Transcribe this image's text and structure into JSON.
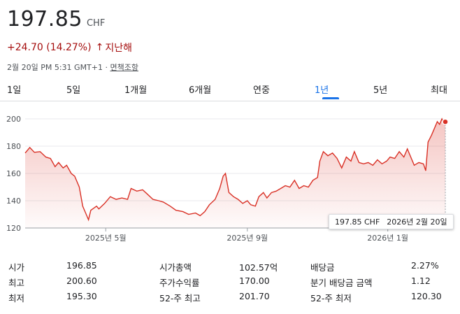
{
  "quote": {
    "price": "197.85",
    "currency": "CHF",
    "change": "+24.70 (14.27%)",
    "change_arrow": "↑",
    "change_period": "지난해",
    "timestamp": "2월 20일 PM 5:31 GMT+1",
    "separator": " · ",
    "disclaimer": "면책조항"
  },
  "tabs": [
    {
      "label": "1일",
      "active": false
    },
    {
      "label": "5일",
      "active": false
    },
    {
      "label": "1개월",
      "active": false
    },
    {
      "label": "6개월",
      "active": false
    },
    {
      "label": "연중",
      "active": false
    },
    {
      "label": "1년",
      "active": true
    },
    {
      "label": "5년",
      "active": false
    },
    {
      "label": "최대",
      "active": false
    }
  ],
  "colors": {
    "line": "#d93025",
    "accent": "#1a73e8",
    "negative_change": "#a50e0e"
  },
  "chart_data": {
    "type": "area",
    "ylim": [
      120,
      200
    ],
    "yticks": [
      200,
      180,
      160,
      140,
      120
    ],
    "x_start": "2025-02-20",
    "x_end": "2026-02-20",
    "xtick_labels": [
      {
        "label": "2025년 5월",
        "date": "2025-05-01"
      },
      {
        "label": "2025년 9월",
        "date": "2025-09-01"
      },
      {
        "label": "2026년 1월",
        "date": "2026-01-01"
      }
    ],
    "grid": "horizontal",
    "series": [
      {
        "points": [
          [
            "2025-02-20",
            175.0
          ],
          [
            "2025-02-24",
            179.0
          ],
          [
            "2025-02-28",
            175.5
          ],
          [
            "2025-03-05",
            176.0
          ],
          [
            "2025-03-10",
            172.0
          ],
          [
            "2025-03-14",
            171.0
          ],
          [
            "2025-03-18",
            165.0
          ],
          [
            "2025-03-21",
            168.0
          ],
          [
            "2025-03-25",
            164.0
          ],
          [
            "2025-03-28",
            166.0
          ],
          [
            "2025-04-01",
            160.0
          ],
          [
            "2025-04-04",
            158.0
          ],
          [
            "2025-04-08",
            150.0
          ],
          [
            "2025-04-11",
            136.0
          ],
          [
            "2025-04-14",
            130.0
          ],
          [
            "2025-04-16",
            126.0
          ],
          [
            "2025-04-18",
            133.0
          ],
          [
            "2025-04-23",
            136.0
          ],
          [
            "2025-04-25",
            134.0
          ],
          [
            "2025-04-30",
            138.0
          ],
          [
            "2025-05-05",
            143.0
          ],
          [
            "2025-05-10",
            141.0
          ],
          [
            "2025-05-15",
            142.0
          ],
          [
            "2025-05-20",
            141.0
          ],
          [
            "2025-05-23",
            149.0
          ],
          [
            "2025-05-28",
            147.0
          ],
          [
            "2025-06-02",
            148.0
          ],
          [
            "2025-06-06",
            145.0
          ],
          [
            "2025-06-11",
            141.0
          ],
          [
            "2025-06-16",
            140.0
          ],
          [
            "2025-06-20",
            139.0
          ],
          [
            "2025-06-26",
            136.0
          ],
          [
            "2025-07-01",
            133.0
          ],
          [
            "2025-07-07",
            132.0
          ],
          [
            "2025-07-12",
            130.0
          ],
          [
            "2025-07-18",
            131.0
          ],
          [
            "2025-07-22",
            129.0
          ],
          [
            "2025-07-26",
            132.0
          ],
          [
            "2025-07-30",
            137.0
          ],
          [
            "2025-08-04",
            141.0
          ],
          [
            "2025-08-08",
            149.0
          ],
          [
            "2025-08-11",
            158.0
          ],
          [
            "2025-08-13",
            160.0
          ],
          [
            "2025-08-16",
            146.0
          ],
          [
            "2025-08-20",
            143.0
          ],
          [
            "2025-08-24",
            141.0
          ],
          [
            "2025-08-28",
            138.0
          ],
          [
            "2025-09-01",
            140.0
          ],
          [
            "2025-09-04",
            137.0
          ],
          [
            "2025-09-08",
            136.0
          ],
          [
            "2025-09-11",
            143.0
          ],
          [
            "2025-09-15",
            146.0
          ],
          [
            "2025-09-18",
            142.0
          ],
          [
            "2025-09-22",
            146.0
          ],
          [
            "2025-09-26",
            147.0
          ],
          [
            "2025-09-30",
            149.0
          ],
          [
            "2025-10-04",
            151.0
          ],
          [
            "2025-10-08",
            150.0
          ],
          [
            "2025-10-12",
            155.0
          ],
          [
            "2025-10-16",
            149.0
          ],
          [
            "2025-10-20",
            151.0
          ],
          [
            "2025-10-24",
            150.0
          ],
          [
            "2025-10-28",
            155.0
          ],
          [
            "2025-11-01",
            157.0
          ],
          [
            "2025-11-03",
            169.0
          ],
          [
            "2025-11-06",
            176.0
          ],
          [
            "2025-11-10",
            173.0
          ],
          [
            "2025-11-14",
            175.0
          ],
          [
            "2025-11-18",
            171.0
          ],
          [
            "2025-11-22",
            164.0
          ],
          [
            "2025-11-26",
            172.0
          ],
          [
            "2025-11-30",
            169.0
          ],
          [
            "2025-12-03",
            176.0
          ],
          [
            "2025-12-07",
            168.0
          ],
          [
            "2025-12-11",
            167.0
          ],
          [
            "2025-12-15",
            168.0
          ],
          [
            "2025-12-19",
            166.0
          ],
          [
            "2025-12-23",
            170.0
          ],
          [
            "2025-12-27",
            167.0
          ],
          [
            "2025-12-31",
            169.0
          ],
          [
            "2026-01-03",
            172.0
          ],
          [
            "2026-01-07",
            171.0
          ],
          [
            "2026-01-11",
            176.0
          ],
          [
            "2026-01-15",
            172.0
          ],
          [
            "2026-01-18",
            178.0
          ],
          [
            "2026-01-21",
            172.0
          ],
          [
            "2026-01-24",
            166.0
          ],
          [
            "2026-01-28",
            168.0
          ],
          [
            "2026-02-01",
            167.0
          ],
          [
            "2026-02-03",
            162.0
          ],
          [
            "2026-02-05",
            183.0
          ],
          [
            "2026-02-08",
            188.0
          ],
          [
            "2026-02-11",
            194.0
          ],
          [
            "2026-02-13",
            198.0
          ],
          [
            "2026-02-15",
            196.0
          ],
          [
            "2026-02-17",
            200.0
          ],
          [
            "2026-02-19",
            196.0
          ],
          [
            "2026-02-20",
            197.85
          ]
        ]
      }
    ]
  },
  "tooltip": {
    "price": "197.85 CHF",
    "date": "2026년 2월 20일"
  },
  "stats": [
    [
      {
        "label": "시가",
        "value": "196.85"
      },
      {
        "label": "시가총액",
        "value": "102.57억"
      },
      {
        "label": "배당금",
        "value": "2.27%"
      }
    ],
    [
      {
        "label": "최고",
        "value": "200.60"
      },
      {
        "label": "주가수익률",
        "value": "170.00"
      },
      {
        "label": "분기 배당금 금액",
        "value": "1.12"
      }
    ],
    [
      {
        "label": "최저",
        "value": "195.30"
      },
      {
        "label": "52-주 최고",
        "value": "201.70"
      },
      {
        "label": "52-주 최저",
        "value": "120.30"
      }
    ]
  ]
}
